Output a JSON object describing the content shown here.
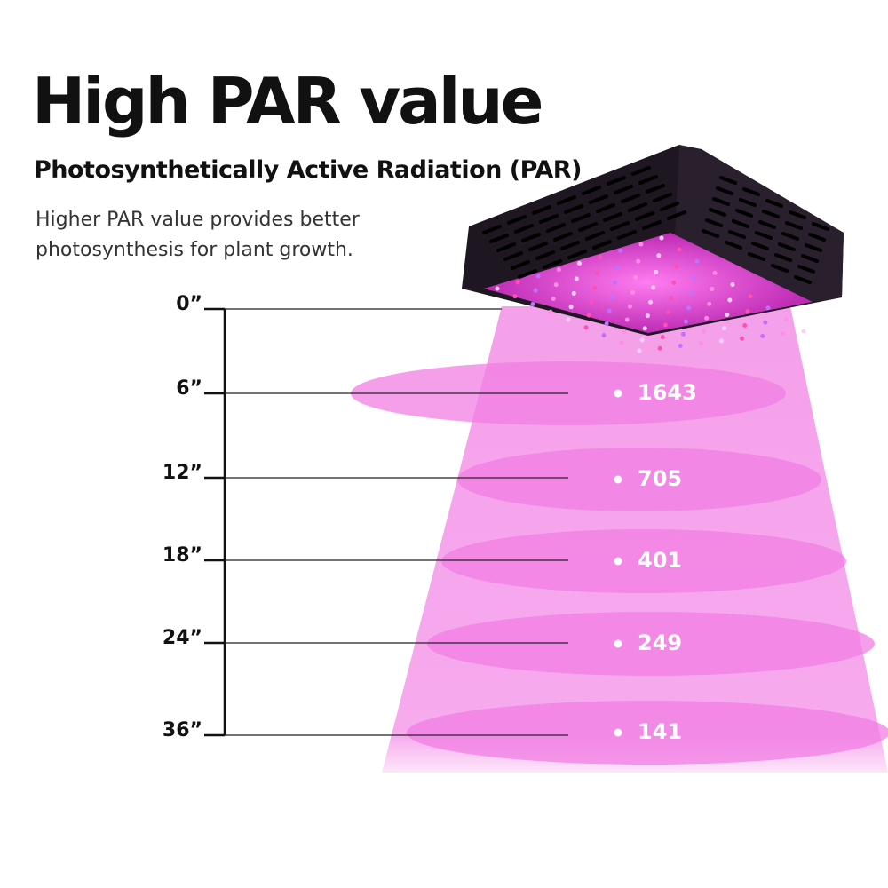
{
  "title": "High PAR value",
  "subtitle": "Photosynthetically Active Radiation (PAR)",
  "description": "Higher PAR value provides better photosynthesis for plant growth.",
  "colors": {
    "beam": "#f7a6ec",
    "ellipse": "#f27de3",
    "fixture": "#1e1620",
    "led_panel": "#e040d8"
  },
  "chart_data": {
    "type": "table",
    "distances": [
      "0”",
      "6”",
      "12”",
      "18”",
      "24”",
      "36”"
    ],
    "par_values": [
      null,
      "1643",
      "705",
      "401",
      "249",
      "141"
    ]
  }
}
